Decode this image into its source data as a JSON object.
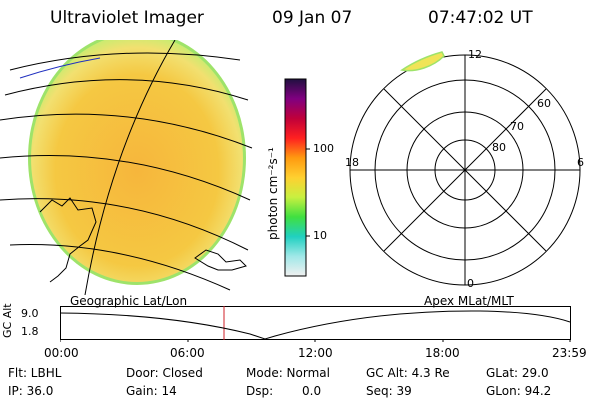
{
  "header": {
    "title": "Ultraviolet Imager",
    "date": "09 Jan 07",
    "time": "07:47:02 UT"
  },
  "colorbar": {
    "unit_label": "photon cm⁻²s⁻¹",
    "ticks": [
      "100",
      "10"
    ]
  },
  "polar_plot": {
    "mlt_labels": {
      "top": "12",
      "left": "18",
      "right": "6",
      "bottom": "0"
    },
    "lat_labels": [
      "60",
      "70",
      "80"
    ]
  },
  "panels": {
    "left_caption": "Geographic Lat/Lon",
    "right_caption": "Apex MLat/MLT"
  },
  "altitude_plot": {
    "axis_label": "GC Alt",
    "y_ticks": [
      "9.0",
      "1.8"
    ],
    "x_ticks": [
      "00:00",
      "06:00",
      "12:00",
      "18:00",
      "23:59"
    ]
  },
  "status": {
    "filter": "Flt: LBHL",
    "ip": "IP: 36.0",
    "door": "Door: Closed",
    "gain": "Gain: 14",
    "mode": "Mode: Normal",
    "dsp_label": "Dsp:",
    "dsp_value": "0.0",
    "gc_alt": "GC Alt: 4.3 Re",
    "seq": "Seq: 39",
    "glat": "GLat: 29.0",
    "glon": "GLon: 94.2"
  },
  "colors": {
    "disk_main": "#f5c842",
    "disk_edge": "#9ee36a",
    "disk_light": "#f0e86a",
    "grid": "#000000",
    "current_time_marker": "#d0202a",
    "coast_blue": "#2030c0"
  }
}
